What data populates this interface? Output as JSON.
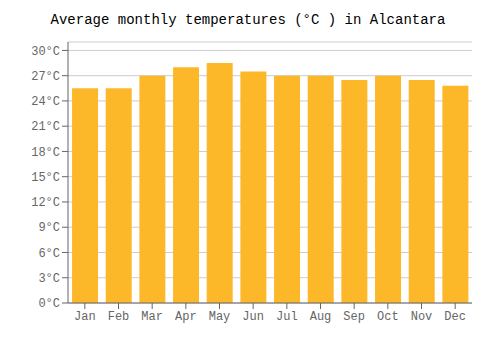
{
  "chart_data": {
    "type": "bar",
    "title": "Average monthly temperatures (°C ) in Alcantara",
    "categories": [
      "Jan",
      "Feb",
      "Mar",
      "Apr",
      "May",
      "Jun",
      "Jul",
      "Aug",
      "Sep",
      "Oct",
      "Nov",
      "Dec"
    ],
    "values": [
      25.5,
      25.5,
      27.0,
      28.0,
      28.5,
      27.5,
      27.0,
      27.0,
      26.5,
      27.0,
      26.5,
      25.8
    ],
    "color": "#FDB82A",
    "ylim": [
      0,
      31
    ],
    "yticks": [
      {
        "value": 0,
        "label": "0°C"
      },
      {
        "value": 3,
        "label": "3°C"
      },
      {
        "value": 6,
        "label": "6°C"
      },
      {
        "value": 9,
        "label": "9°C"
      },
      {
        "value": 12,
        "label": "12°C"
      },
      {
        "value": 15,
        "label": "15°C"
      },
      {
        "value": 18,
        "label": "18°C"
      },
      {
        "value": 21,
        "label": "21°C"
      },
      {
        "value": 24,
        "label": "24°C"
      },
      {
        "value": 27,
        "label": "27°C"
      },
      {
        "value": 30,
        "label": "30°C"
      }
    ],
    "grid": true
  }
}
